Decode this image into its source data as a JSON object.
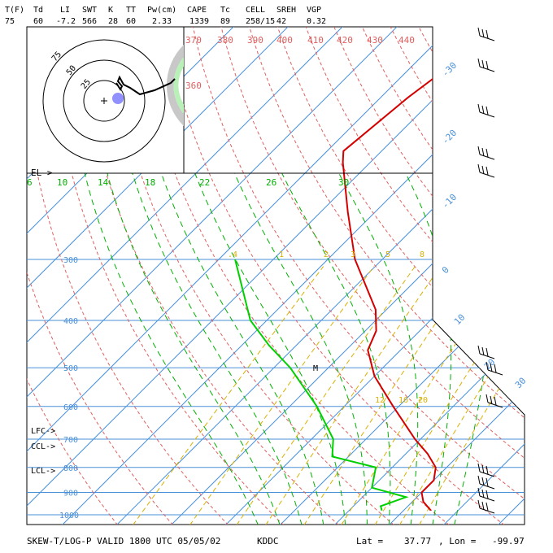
{
  "header": {
    "labels": [
      "T(F)",
      "Td",
      "LI",
      "SWT",
      "K",
      "TT",
      "Pw(cm)",
      "CAPE",
      "Tc",
      "CELL",
      "SREH",
      "VGP"
    ],
    "values": [
      "75",
      "60",
      "-7.2",
      "566",
      "28",
      "60",
      "2.33",
      "1339",
      "89",
      "258/15",
      "42",
      "0.32"
    ]
  },
  "footer": {
    "title": "SKEW-T/LOG-P VALID 1800 UTC 05/05/02",
    "station": "KDDC",
    "lat_label": "Lat =",
    "lat_value": "37.77",
    "lon_label": ", Lon =",
    "lon_value": "-99.97"
  },
  "levels": {
    "el": "EL->",
    "lfc": "LFC->",
    "ccl": "CCL->",
    "lcl": "LCL->"
  },
  "marker_m": "M",
  "hodograph": {
    "ring_labels": [
      "25",
      "50",
      "75"
    ]
  },
  "colors": {
    "temperature": "#d40000",
    "dewpoint": "#00d000",
    "isotherm": "#4a90d9",
    "isobar": "#4a90d9",
    "dry_adiabat": "#e06060",
    "moist_adiabat": "#00b000",
    "mixing_ratio": "#d8b000",
    "theta_e_label": "#e06060",
    "hodograph_storm": "#9090ff"
  },
  "chart_data": {
    "type": "skew-t",
    "pressure_levels_hpa": [
      "300",
      "400",
      "500",
      "600",
      "700",
      "800",
      "900",
      "1000"
    ],
    "isotherm_labels_c": [
      "-30",
      "-20",
      "-10",
      "0",
      "10",
      "20",
      "30"
    ],
    "dry_adiabat_labels_k": [
      "370",
      "380",
      "390",
      "400",
      "410",
      "420",
      "430",
      "440",
      "360"
    ],
    "moist_adiabat_labels_c": [
      "6",
      "10",
      "14",
      "18",
      "22",
      "26",
      "30"
    ],
    "mixing_ratio_labels_gkg": [
      "1",
      "2",
      "3",
      "5",
      "8",
      "12",
      "16",
      "20"
    ],
    "mixing_ratio_label_1": ".4",
    "temperature_profile": [
      {
        "p": 980,
        "t": 25
      },
      {
        "p": 940,
        "t": 22
      },
      {
        "p": 900,
        "t": 20
      },
      {
        "p": 850,
        "t": 20
      },
      {
        "p": 800,
        "t": 18
      },
      {
        "p": 750,
        "t": 14
      },
      {
        "p": 700,
        "t": 9
      },
      {
        "p": 600,
        "t": -1
      },
      {
        "p": 520,
        "t": -10
      },
      {
        "p": 460,
        "t": -16
      },
      {
        "p": 420,
        "t": -18
      },
      {
        "p": 380,
        "t": -22
      },
      {
        "p": 300,
        "t": -35
      },
      {
        "p": 240,
        "t": -45
      },
      {
        "p": 190,
        "t": -55
      },
      {
        "p": 180,
        "t": -57
      },
      {
        "p": 140,
        "t": -55
      },
      {
        "p": 120,
        "t": -53
      },
      {
        "p": 100,
        "t": -52
      }
    ],
    "dewpoint_profile": [
      {
        "p": 980,
        "t": 16
      },
      {
        "p": 960,
        "t": 15
      },
      {
        "p": 920,
        "t": 18
      },
      {
        "p": 880,
        "t": 10
      },
      {
        "p": 800,
        "t": 7
      },
      {
        "p": 760,
        "t": -3
      },
      {
        "p": 700,
        "t": -6
      },
      {
        "p": 600,
        "t": -15
      },
      {
        "p": 500,
        "t": -27
      },
      {
        "p": 450,
        "t": -35
      },
      {
        "p": 400,
        "t": -43
      },
      {
        "p": 300,
        "t": -57
      }
    ]
  }
}
